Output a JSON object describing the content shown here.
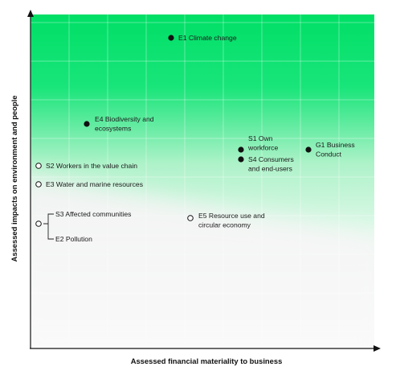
{
  "chart_data": {
    "type": "scatter",
    "xlabel": "Assessed financial materiality to business",
    "ylabel": "Assessed impacts on environment and people",
    "xlim": [
      0,
      100
    ],
    "ylim": [
      0,
      100
    ],
    "grid": true,
    "colors": {
      "high_zone": "#00e06a",
      "mid_zone": "#9ff0c2",
      "low_zone": "#f2f2f2",
      "marker": "#111111",
      "axis": "#111111",
      "grid": "#ffffff"
    },
    "points": [
      {
        "label": "E1 Climate change",
        "x": 40,
        "y": 94,
        "marker": "filled"
      },
      {
        "label": "E4 Biodiversity and ecosystems",
        "x": 17,
        "y": 69,
        "marker": "filled"
      },
      {
        "label": "S1 Own workforce",
        "x": 61,
        "y": 60,
        "marker": "filled"
      },
      {
        "label": "S4 Consumers and end-users",
        "x": 61,
        "y": 57,
        "marker": "filled"
      },
      {
        "label": "G1 Business Conduct",
        "x": 80,
        "y": 60,
        "marker": "filled"
      },
      {
        "label": "S2 Workers in the value chain",
        "x": 2,
        "y": 55,
        "marker": "open"
      },
      {
        "label": "E3 Water and marine resources",
        "x": 2,
        "y": 50,
        "marker": "open"
      },
      {
        "label": "E5 Resource use and circular economy",
        "x": 46,
        "y": 41,
        "marker": "open"
      },
      {
        "label": "S3 Affected communities",
        "x": 2,
        "y": 38,
        "marker": "open"
      },
      {
        "label": "E2 Pollution",
        "x": 2,
        "y": 38,
        "marker": "open"
      }
    ]
  },
  "labels": {
    "E1": [
      "E1 Climate change"
    ],
    "E4": [
      "E4 Biodiversity and",
      "ecosystems"
    ],
    "S1": [
      "S1 Own",
      "workforce"
    ],
    "S4": [
      "S4 Consumers",
      "and end-users"
    ],
    "G1": [
      "G1 Business",
      "Conduct"
    ],
    "S2": [
      "S2 Workers in the value chain"
    ],
    "E3": [
      "E3 Water and marine resources"
    ],
    "E5": [
      "E5 Resource use and",
      "circular economy"
    ],
    "S3": [
      "S3 Affected communities"
    ],
    "E2": [
      "E2 Pollution"
    ]
  }
}
